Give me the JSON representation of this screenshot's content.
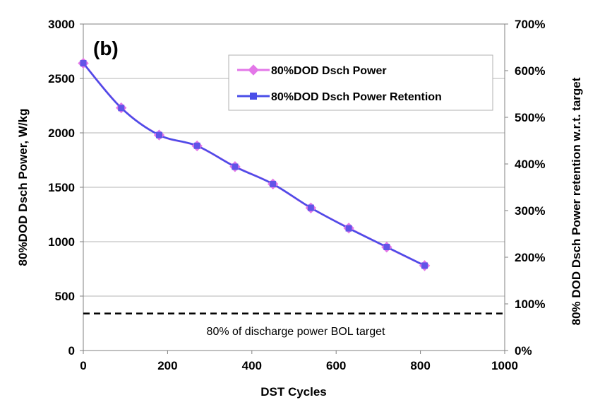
{
  "chart_data": {
    "type": "line",
    "panel_label": "(b)",
    "xlabel": "DST Cycles",
    "ylabel": "80%DOD Dsch Power, W/kg",
    "y2label": "80% DOD Dsch Power retention w.r.t. target",
    "xlim": [
      0,
      1000
    ],
    "ylim": [
      0,
      3000
    ],
    "y2lim": [
      0,
      700
    ],
    "xticks": [
      "0",
      "200",
      "400",
      "600",
      "800",
      "1000"
    ],
    "yticks": [
      "0",
      "500",
      "1000",
      "1500",
      "2000",
      "2500",
      "3000"
    ],
    "y2ticks": [
      "0%",
      "100%",
      "200%",
      "300%",
      "400%",
      "500%",
      "600%",
      "700%"
    ],
    "x": [
      0,
      90,
      180,
      270,
      360,
      450,
      540,
      630,
      720,
      810
    ],
    "series": [
      {
        "name": "80%DOD Dsch Power",
        "axis": "left",
        "color": "#e377e8",
        "marker": "diamond",
        "values": [
          2640,
          2230,
          1980,
          1880,
          1690,
          1530,
          1310,
          1125,
          950,
          780
        ]
      },
      {
        "name": "80%DOD Dsch Power Retention",
        "axis": "right",
        "color": "#4a4ee8",
        "marker": "square",
        "values": [
          616,
          520,
          462,
          439,
          394,
          357,
          306,
          262,
          222,
          182
        ]
      }
    ],
    "reference_line": {
      "y": 340,
      "style": "dashed",
      "label": "80% of discharge power BOL target"
    },
    "grid": "horizontal",
    "legend_position": "top-right"
  }
}
